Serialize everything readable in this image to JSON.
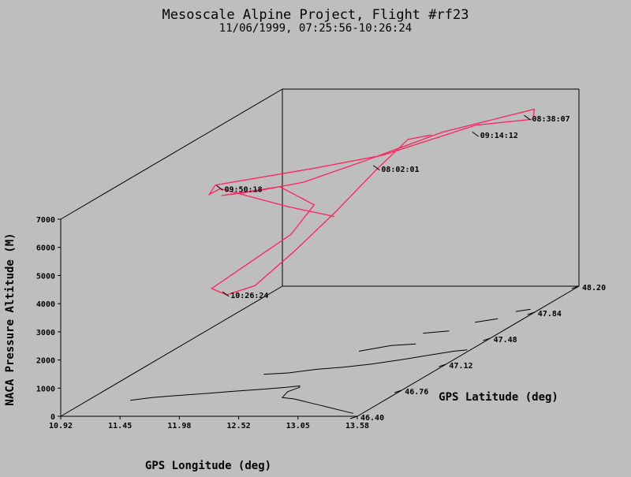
{
  "chart_data": {
    "type": "line",
    "title": "Mesoscale Alpine Project, Flight #rf23",
    "subtitle": "11/06/1999, 07:25:56-10:26:24",
    "x_axis": {
      "label": "GPS Longitude (deg)",
      "range": [
        10.92,
        13.58
      ],
      "ticks": [
        "10.92",
        "11.45",
        "11.98",
        "12.52",
        "13.05",
        "13.58"
      ]
    },
    "y_axis": {
      "label": "GPS Latitude (deg)",
      "range": [
        46.4,
        48.2
      ],
      "ticks": [
        "46.40",
        "46.76",
        "47.12",
        "47.48",
        "47.84",
        "48.20"
      ]
    },
    "z_axis": {
      "label": "NACA Pressure Altitude (M)",
      "range": [
        0,
        7000
      ],
      "ticks": [
        "0",
        "1000",
        "2000",
        "3000",
        "4000",
        "5000",
        "6000",
        "7000"
      ]
    },
    "series": [
      {
        "color": "#ff2060",
        "points": [
          {
            "lon": 12.6,
            "lat": 47.1,
            "alt": 5300
          },
          {
            "lon": 12.3,
            "lat": 47.0,
            "alt": 5900
          },
          {
            "lon": 11.8,
            "lat": 46.9,
            "alt": 6800
          },
          {
            "lon": 11.7,
            "lat": 46.9,
            "alt": 6600
          },
          {
            "lon": 11.7,
            "lat": 46.95,
            "alt": 6800
          },
          {
            "lon": 12.3,
            "lat": 47.2,
            "alt": 6750
          },
          {
            "lon": 12.7,
            "lat": 47.4,
            "alt": 6700
          },
          {
            "lon": 13.1,
            "lat": 47.8,
            "alt": 6750
          },
          {
            "lon": 13.5,
            "lat": 47.9,
            "alt": 6700
          },
          {
            "lon": 13.4,
            "lat": 48.0,
            "alt": 6800
          },
          {
            "lon": 13.2,
            "lat": 48.0,
            "alt": 6600
          },
          {
            "lon": 12.8,
            "lat": 47.8,
            "alt": 6500
          },
          {
            "lon": 12.4,
            "lat": 47.5,
            "alt": 6200
          },
          {
            "lon": 12.1,
            "lat": 47.3,
            "alt": 6000
          },
          {
            "lon": 11.9,
            "lat": 47.1,
            "alt": 6200
          },
          {
            "lon": 11.7,
            "lat": 47.0,
            "alt": 6300
          },
          {
            "lon": 12.0,
            "lat": 47.2,
            "alt": 6100
          },
          {
            "lon": 12.2,
            "lat": 47.3,
            "alt": 5200
          },
          {
            "lon": 12.1,
            "lat": 47.2,
            "alt": 4400
          },
          {
            "lon": 11.9,
            "lat": 47.05,
            "alt": 3800
          },
          {
            "lon": 11.7,
            "lat": 46.92,
            "alt": 3200
          },
          {
            "lon": 11.8,
            "lat": 46.95,
            "alt": 2900
          },
          {
            "lon": 12.0,
            "lat": 47.0,
            "alt": 3100
          },
          {
            "lon": 12.3,
            "lat": 47.05,
            "alt": 4200
          },
          {
            "lon": 12.5,
            "lat": 47.2,
            "alt": 5200
          },
          {
            "lon": 12.6,
            "lat": 47.45,
            "alt": 6100
          },
          {
            "lon": 12.6,
            "lat": 47.7,
            "alt": 6500
          },
          {
            "lon": 12.7,
            "lat": 47.8,
            "alt": 6400
          }
        ]
      }
    ],
    "annotations": [
      {
        "text": "08:38:07",
        "lon": 13.4,
        "lat": 47.95,
        "alt": 6600
      },
      {
        "text": "09:14:12",
        "lon": 13.1,
        "lat": 47.8,
        "alt": 6400
      },
      {
        "text": "08:02:01",
        "lon": 12.6,
        "lat": 47.45,
        "alt": 6100
      },
      {
        "text": "09:50:18",
        "lon": 11.8,
        "lat": 46.9,
        "alt": 6800
      },
      {
        "text": "10:26:24",
        "lon": 11.8,
        "lat": 46.95,
        "alt": 2900
      }
    ],
    "grid": false,
    "coastline_color": "#000000"
  }
}
